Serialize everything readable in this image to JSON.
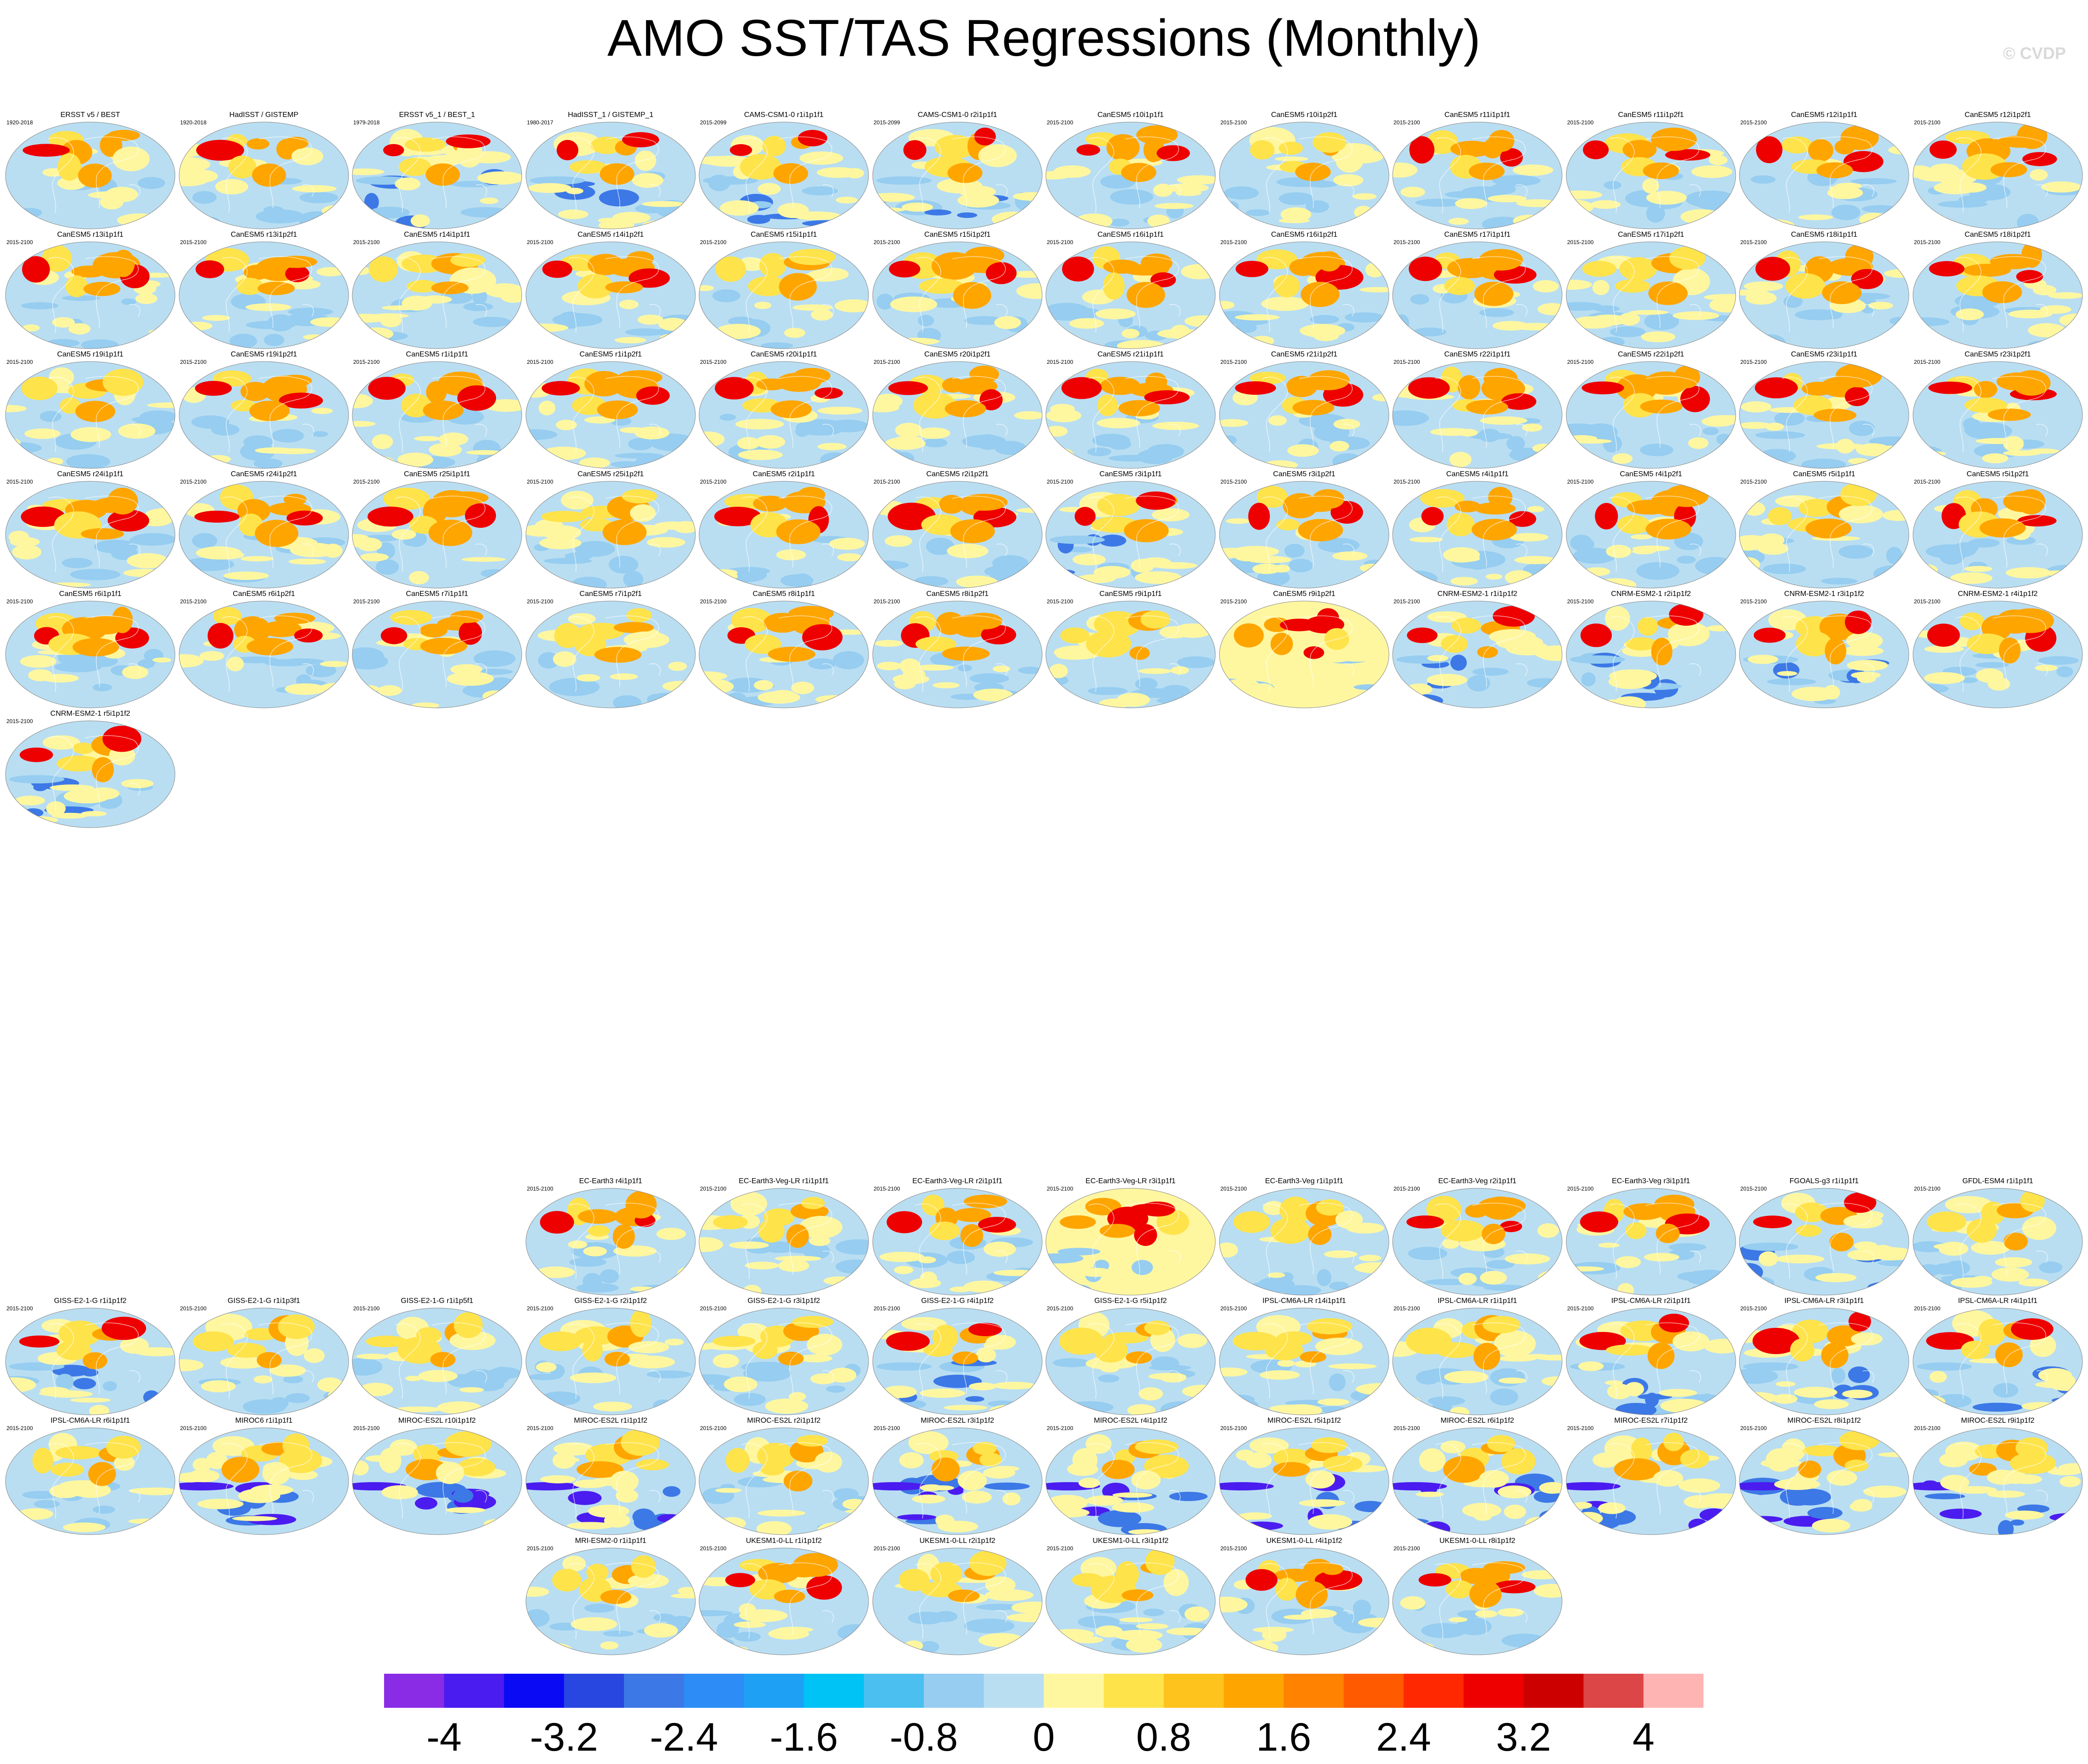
{
  "title": "AMO SST/TAS Regressions (Monthly)",
  "copyright": "© CVDP",
  "panels": [
    {
      "title": "ERSST v5 / BEST",
      "years": "1920-2018",
      "style": "obs"
    },
    {
      "title": "HadISST / GISTEMP",
      "years": "1920-2018",
      "style": "obs"
    },
    {
      "title": "ERSST v5_1 / BEST_1",
      "years": "1979-2018",
      "style": "cold"
    },
    {
      "title": "HadISST_1 / GISTEMP_1",
      "years": "1980-2017",
      "style": "cold"
    },
    {
      "title": "CAMS-CSM1-0 r1i1p1f1",
      "years": "2015-2099",
      "style": "cold"
    },
    {
      "title": "CAMS-CSM1-0 r2i1p1f1",
      "years": "2015-2099",
      "style": "cold"
    },
    {
      "title": "CanESM5 r10i1p1f1",
      "years": "2015-2100",
      "style": "warm"
    },
    {
      "title": "CanESM5 r10i1p2f1",
      "years": "2015-2100",
      "style": "mixed"
    },
    {
      "title": "CanESM5 r11i1p1f1",
      "years": "2015-2100",
      "style": "warm"
    },
    {
      "title": "CanESM5 r11i1p2f1",
      "years": "2015-2100",
      "style": "warm"
    },
    {
      "title": "CanESM5 r12i1p1f1",
      "years": "2015-2100",
      "style": "warm"
    },
    {
      "title": "CanESM5 r12i1p2f1",
      "years": "2015-2100",
      "style": "warm"
    },
    {
      "title": "CanESM5 r13i1p1f1",
      "years": "2015-2100",
      "style": "warm"
    },
    {
      "title": "CanESM5 r13i1p2f1",
      "years": "2015-2100",
      "style": "warm"
    },
    {
      "title": "CanESM5 r14i1p1f1",
      "years": "2015-2100",
      "style": "mixed"
    },
    {
      "title": "CanESM5 r14i1p2f1",
      "years": "2015-2100",
      "style": "warm"
    },
    {
      "title": "CanESM5 r15i1p1f1",
      "years": "2015-2100",
      "style": "mixed"
    },
    {
      "title": "CanESM5 r15i1p2f1",
      "years": "2015-2100",
      "style": "warm"
    },
    {
      "title": "CanESM5 r16i1p1f1",
      "years": "2015-2100",
      "style": "warm"
    },
    {
      "title": "CanESM5 r16i1p2f1",
      "years": "2015-2100",
      "style": "warm"
    },
    {
      "title": "CanESM5 r17i1p1f1",
      "years": "2015-2100",
      "style": "warm"
    },
    {
      "title": "CanESM5 r17i1p2f1",
      "years": "2015-2100",
      "style": "mixed"
    },
    {
      "title": "CanESM5 r18i1p1f1",
      "years": "2015-2100",
      "style": "warm"
    },
    {
      "title": "CanESM5 r18i1p2f1",
      "years": "2015-2100",
      "style": "warm"
    },
    {
      "title": "CanESM5 r19i1p1f1",
      "years": "2015-2100",
      "style": "mixed"
    },
    {
      "title": "CanESM5 r19i1p2f1",
      "years": "2015-2100",
      "style": "warm"
    },
    {
      "title": "CanESM5 r1i1p1f1",
      "years": "2015-2100",
      "style": "warm"
    },
    {
      "title": "CanESM5 r1i1p2f1",
      "years": "2015-2100",
      "style": "warm"
    },
    {
      "title": "CanESM5 r20i1p1f1",
      "years": "2015-2100",
      "style": "warm"
    },
    {
      "title": "CanESM5 r20i1p2f1",
      "years": "2015-2100",
      "style": "warm"
    },
    {
      "title": "CanESM5 r21i1p1f1",
      "years": "2015-2100",
      "style": "warm"
    },
    {
      "title": "CanESM5 r21i1p2f1",
      "years": "2015-2100",
      "style": "warm"
    },
    {
      "title": "CanESM5 r22i1p1f1",
      "years": "2015-2100",
      "style": "warm"
    },
    {
      "title": "CanESM5 r22i1p2f1",
      "years": "2015-2100",
      "style": "warm"
    },
    {
      "title": "CanESM5 r23i1p1f1",
      "years": "2015-2100",
      "style": "warm"
    },
    {
      "title": "CanESM5 r23i1p2f1",
      "years": "2015-2100",
      "style": "warm"
    },
    {
      "title": "CanESM5 r24i1p1f1",
      "years": "2015-2100",
      "style": "warm"
    },
    {
      "title": "CanESM5 r24i1p2f1",
      "years": "2015-2100",
      "style": "warm"
    },
    {
      "title": "CanESM5 r25i1p1f1",
      "years": "2015-2100",
      "style": "warm"
    },
    {
      "title": "CanESM5 r25i1p2f1",
      "years": "2015-2100",
      "style": "mixed"
    },
    {
      "title": "CanESM5 r2i1p1f1",
      "years": "2015-2100",
      "style": "warm"
    },
    {
      "title": "CanESM5 r2i1p2f1",
      "years": "2015-2100",
      "style": "warm"
    },
    {
      "title": "CanESM5 r3i1p1f1",
      "years": "2015-2100",
      "style": "cold"
    },
    {
      "title": "CanESM5 r3i1p2f1",
      "years": "2015-2100",
      "style": "warm"
    },
    {
      "title": "CanESM5 r4i1p1f1",
      "years": "2015-2100",
      "style": "warm"
    },
    {
      "title": "CanESM5 r4i1p2f1",
      "years": "2015-2100",
      "style": "warm"
    },
    {
      "title": "CanESM5 r5i1p1f1",
      "years": "2015-2100",
      "style": "mixed"
    },
    {
      "title": "CanESM5 r5i1p2f1",
      "years": "2015-2100",
      "style": "warm"
    },
    {
      "title": "CanESM5 r6i1p1f1",
      "years": "2015-2100",
      "style": "warm"
    },
    {
      "title": "CanESM5 r6i1p2f1",
      "years": "2015-2100",
      "style": "warm"
    },
    {
      "title": "CanESM5 r7i1p1f1",
      "years": "2015-2100",
      "style": "warm"
    },
    {
      "title": "CanESM5 r7i1p2f1",
      "years": "2015-2100",
      "style": "mixed"
    },
    {
      "title": "CanESM5 r8i1p1f1",
      "years": "2015-2100",
      "style": "warm"
    },
    {
      "title": "CanESM5 r8i1p2f1",
      "years": "2015-2100",
      "style": "warm"
    },
    {
      "title": "CanESM5 r9i1p1f1",
      "years": "2015-2100",
      "style": "mixed"
    },
    {
      "title": "CanESM5 r9i1p2f1",
      "years": "2015-2100",
      "style": "hot"
    },
    {
      "title": "CNRM-ESM2-1 r1i1p1f2",
      "years": "2015-2100",
      "style": "cold"
    },
    {
      "title": "CNRM-ESM2-1 r2i1p1f2",
      "years": "2015-2100",
      "style": "cold"
    },
    {
      "title": "CNRM-ESM2-1 r3i1p1f2",
      "years": "2015-2100",
      "style": "cold"
    },
    {
      "title": "CNRM-ESM2-1 r4i1p1f2",
      "years": "2015-2100",
      "style": "warm"
    },
    {
      "title": "CNRM-ESM2-1 r5i1p1f2",
      "years": "2015-2100",
      "style": "cold"
    },
    {
      "title": "EC-Earth3 r4i1p1f1",
      "years": "2015-2100",
      "style": "warm"
    },
    {
      "title": "EC-Earth3-Veg-LR r1i1p1f1",
      "years": "2015-2100",
      "style": "mixed"
    },
    {
      "title": "EC-Earth3-Veg-LR r2i1p1f1",
      "years": "2015-2100",
      "style": "warm"
    },
    {
      "title": "EC-Earth3-Veg-LR r3i1p1f1",
      "years": "2015-2100",
      "style": "hot"
    },
    {
      "title": "EC-Earth3-Veg r1i1p1f1",
      "years": "2015-2100",
      "style": "mixed"
    },
    {
      "title": "EC-Earth3-Veg r2i1p1f1",
      "years": "2015-2100",
      "style": "warm"
    },
    {
      "title": "EC-Earth3-Veg r3i1p1f1",
      "years": "2015-2100",
      "style": "warm"
    },
    {
      "title": "FGOALS-g3 r1i1p1f1",
      "years": "2015-2100",
      "style": "cold"
    },
    {
      "title": "GFDL-ESM4 r1i1p1f1",
      "years": "2015-2100",
      "style": "mixed"
    },
    {
      "title": "GISS-E2-1-G r1i1p1f2",
      "years": "2015-2100",
      "style": "cold"
    },
    {
      "title": "GISS-E2-1-G r1i1p3f1",
      "years": "2015-2100",
      "style": "mixed"
    },
    {
      "title": "GISS-E2-1-G r1i1p5f1",
      "years": "2015-2100",
      "style": "mixed"
    },
    {
      "title": "GISS-E2-1-G r2i1p1f2",
      "years": "2015-2100",
      "style": "mixed"
    },
    {
      "title": "GISS-E2-1-G r3i1p1f2",
      "years": "2015-2100",
      "style": "mixed"
    },
    {
      "title": "GISS-E2-1-G r4i1p1f2",
      "years": "2015-2100",
      "style": "cold"
    },
    {
      "title": "GISS-E2-1-G r5i1p1f2",
      "years": "2015-2100",
      "style": "mixed"
    },
    {
      "title": "IPSL-CM6A-LR r14i1p1f1",
      "years": "2015-2100",
      "style": "mixed"
    },
    {
      "title": "IPSL-CM6A-LR r1i1p1f1",
      "years": "2015-2100",
      "style": "mixed"
    },
    {
      "title": "IPSL-CM6A-LR r2i1p1f1",
      "years": "2015-2100",
      "style": "cold"
    },
    {
      "title": "IPSL-CM6A-LR r3i1p1f1",
      "years": "2015-2100",
      "style": "cold"
    },
    {
      "title": "IPSL-CM6A-LR r4i1p1f1",
      "years": "2015-2100",
      "style": "cold"
    },
    {
      "title": "IPSL-CM6A-LR r6i1p1f1",
      "years": "2015-2100",
      "style": "mixed"
    },
    {
      "title": "MIROC6 r1i1p1f1",
      "years": "2015-2100",
      "style": "band"
    },
    {
      "title": "MIROC-ES2L r10i1p1f2",
      "years": "2015-2100",
      "style": "band"
    },
    {
      "title": "MIROC-ES2L r1i1p1f2",
      "years": "2015-2100",
      "style": "band"
    },
    {
      "title": "MIROC-ES2L r2i1p1f2",
      "years": "2015-2100",
      "style": "mixed"
    },
    {
      "title": "MIROC-ES2L r3i1p1f2",
      "years": "2015-2100",
      "style": "band"
    },
    {
      "title": "MIROC-ES2L r4i1p1f2",
      "years": "2015-2100",
      "style": "band"
    },
    {
      "title": "MIROC-ES2L r5i1p1f2",
      "years": "2015-2100",
      "style": "band"
    },
    {
      "title": "MIROC-ES2L r6i1p1f2",
      "years": "2015-2100",
      "style": "band"
    },
    {
      "title": "MIROC-ES2L r7i1p1f2",
      "years": "2015-2100",
      "style": "band"
    },
    {
      "title": "MIROC-ES2L r8i1p1f2",
      "years": "2015-2100",
      "style": "band"
    },
    {
      "title": "MIROC-ES2L r9i1p1f2",
      "years": "2015-2100",
      "style": "band"
    },
    {
      "title": "MRI-ESM2-0 r1i1p1f1",
      "years": "2015-2100",
      "style": "mixed"
    },
    {
      "title": "UKESM1-0-LL r1i1p1f2",
      "years": "2015-2100",
      "style": "warm"
    },
    {
      "title": "UKESM1-0-LL r2i1p1f2",
      "years": "2015-2100",
      "style": "mixed"
    },
    {
      "title": "UKESM1-0-LL r3i1p1f2",
      "years": "2015-2100",
      "style": "mixed"
    },
    {
      "title": "UKESM1-0-LL r4i1p1f2",
      "years": "2015-2100",
      "style": "warm"
    },
    {
      "title": "UKESM1-0-LL r8i1p1f2",
      "years": "2015-2100",
      "style": "warm"
    }
  ],
  "colorbar": {
    "colors": [
      "#8a2be6",
      "#4b1cf0",
      "#0a0af5",
      "#2846e0",
      "#3c78e6",
      "#2d8cf5",
      "#1ea0f5",
      "#00c3f5",
      "#4bc0f0",
      "#96cdf0",
      "#b9def2",
      "#fff7a0",
      "#ffe34b",
      "#ffc31e",
      "#ffa500",
      "#ff8200",
      "#ff5a00",
      "#ff2800",
      "#ee0000",
      "#cd0000",
      "#dc4646",
      "#ffb4b4"
    ],
    "tick_labels": [
      "-4",
      "-3.2",
      "-2.4",
      "-1.6",
      "-0.8",
      "0",
      "0.8",
      "1.6",
      "2.4",
      "3.2",
      "4"
    ]
  },
  "map_colors": {
    "ocean_light": "#b9def2",
    "ocean_mid": "#96cdf0",
    "ocean_blue": "#3c78e6",
    "yellow": "#fff7a0",
    "gold": "#ffe34b",
    "orange": "#ffa500",
    "red": "#ee0000",
    "purple": "#4b1cf0"
  }
}
